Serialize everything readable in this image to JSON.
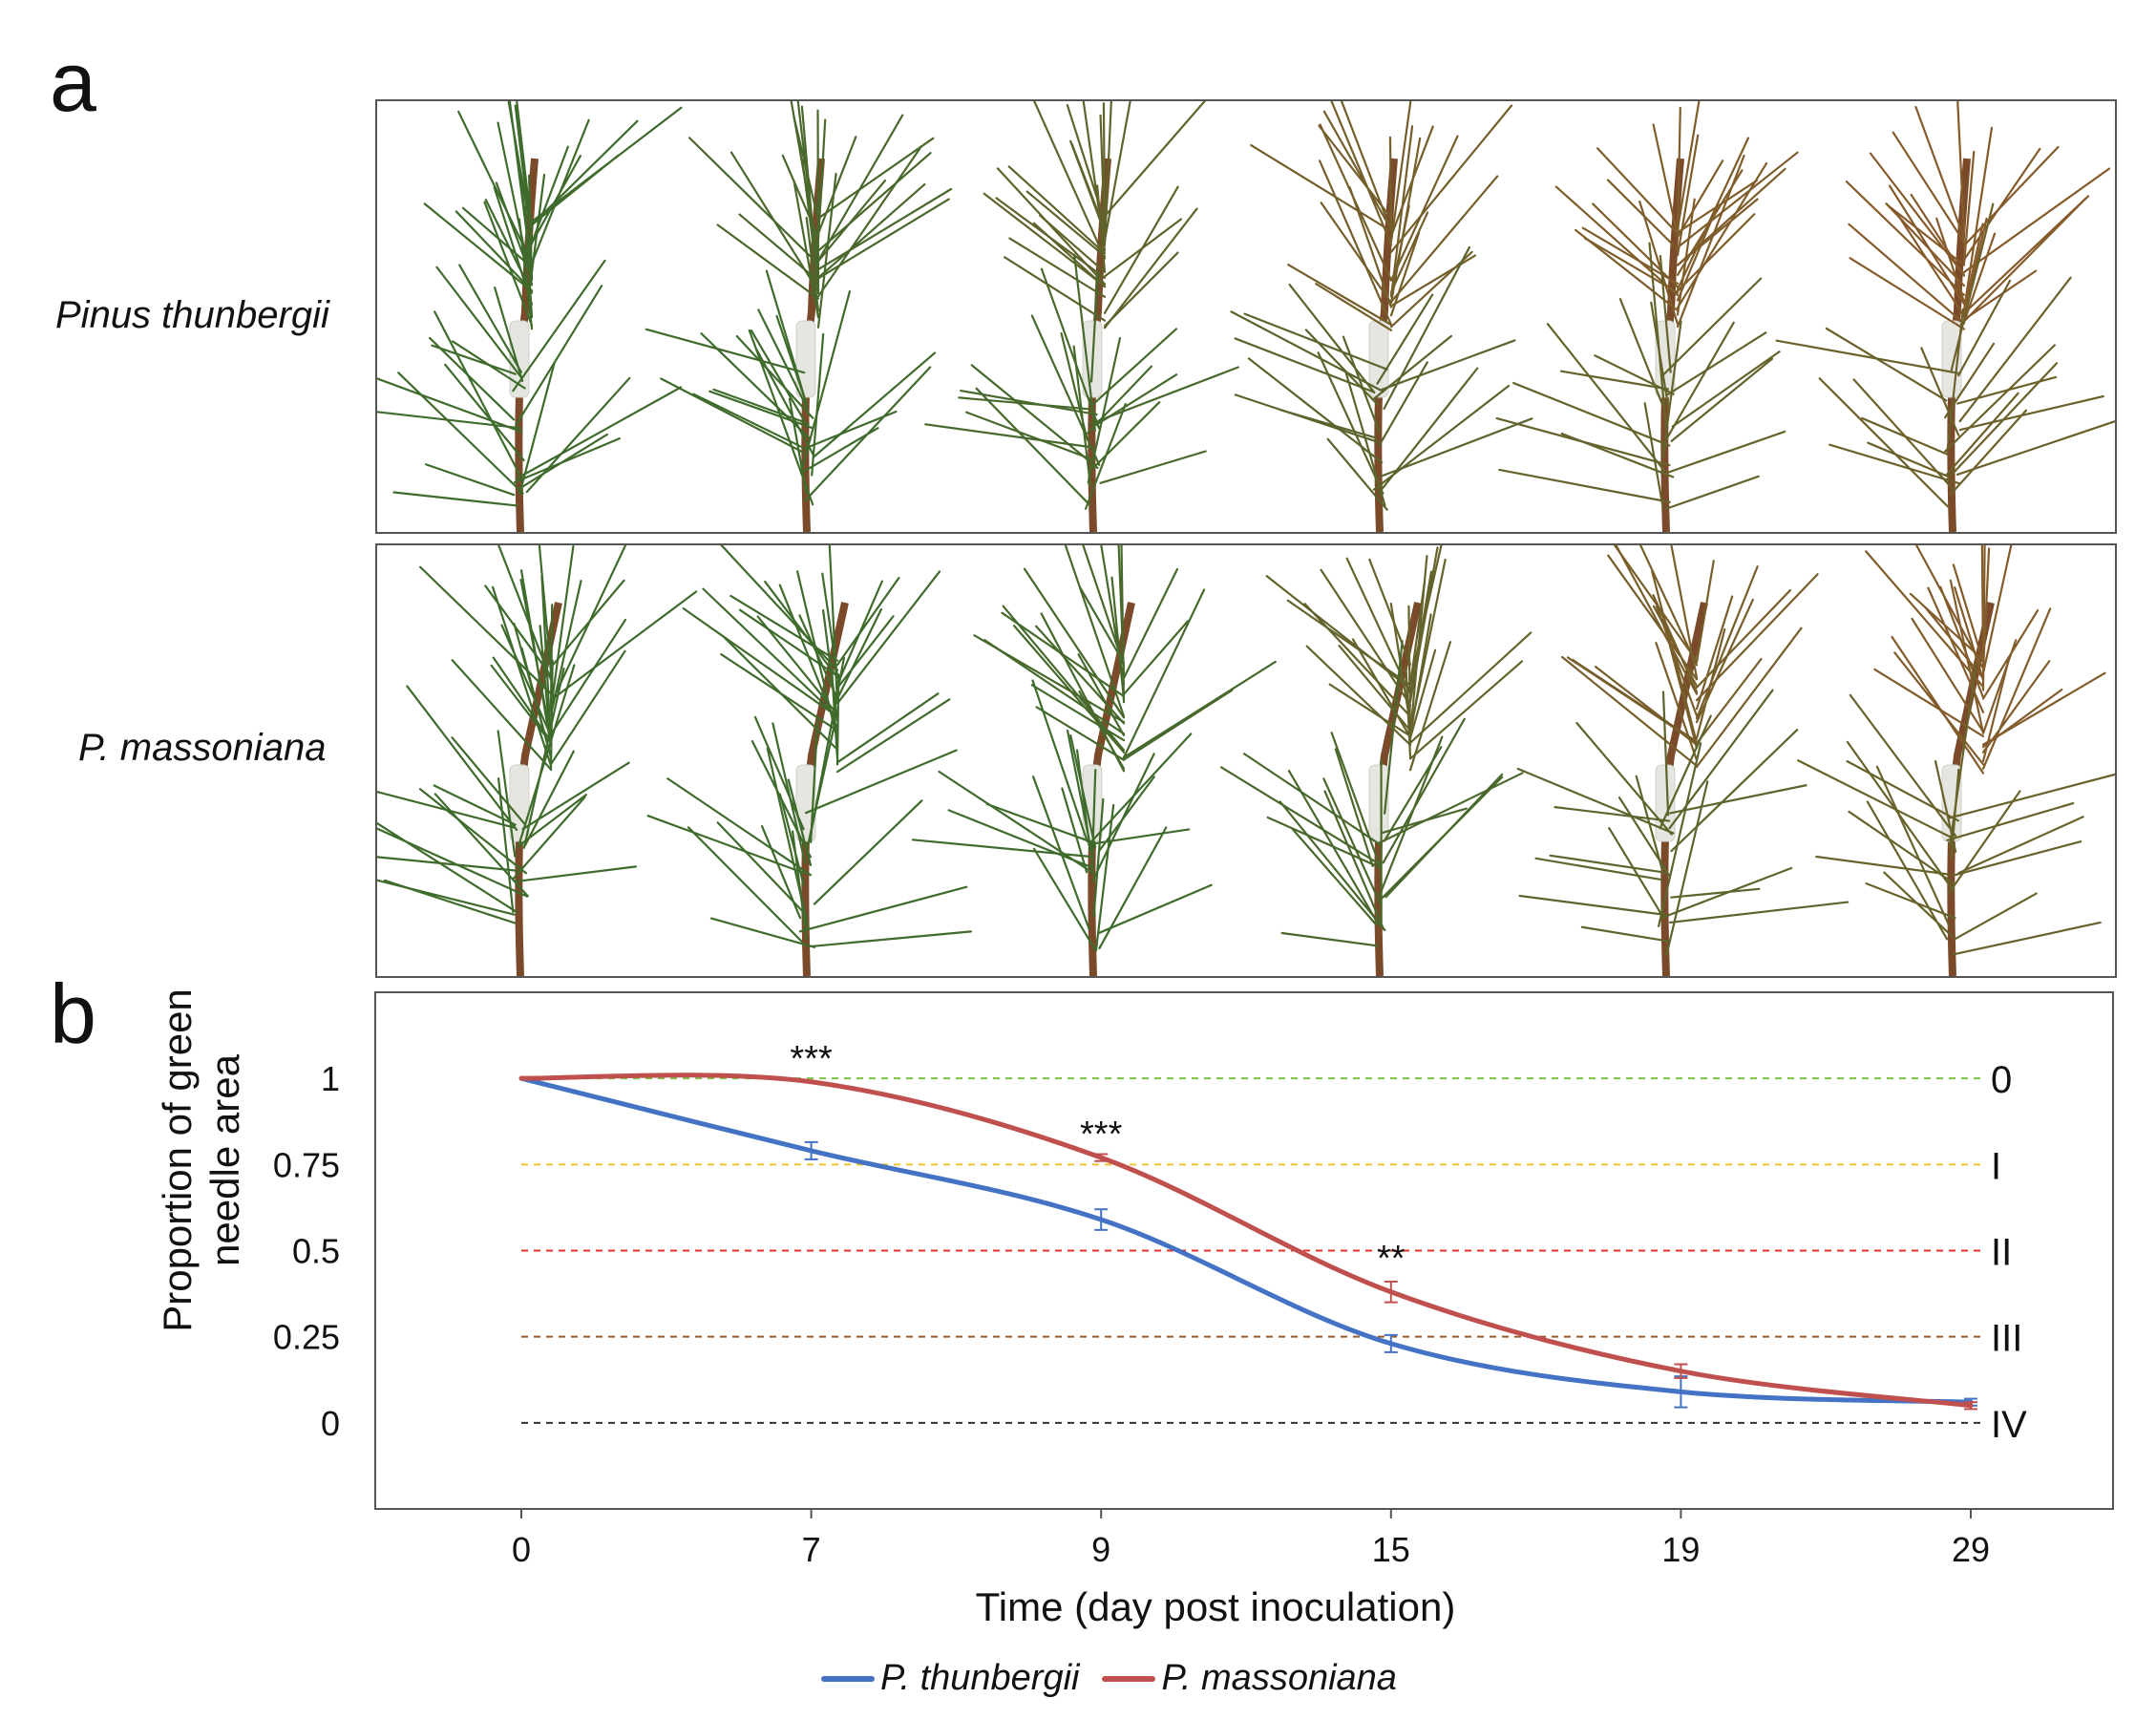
{
  "panel_a": {
    "letter": "a",
    "rows": [
      {
        "label": "Pinus thunbergii",
        "browning": [
          0.0,
          0.15,
          0.45,
          0.7,
          0.85,
          0.95
        ]
      },
      {
        "label": "P. massoniana",
        "browning": [
          0.0,
          0.0,
          0.1,
          0.5,
          0.75,
          0.9
        ]
      }
    ],
    "colors": {
      "green": "#3f6b2c",
      "brown": "#8a5a2b",
      "stem": "#7a4a2a",
      "tape": "#e6e6e0"
    }
  },
  "panel_b": {
    "letter": "b"
  },
  "chart_data": {
    "type": "line",
    "title": "",
    "xlabel": "Time (day post inoculation)",
    "ylabel_lines": [
      "Proportion of green",
      "needle area"
    ],
    "categories": [
      "0",
      "7",
      "9",
      "15",
      "19",
      "29"
    ],
    "ylim": [
      -0.25,
      1.25
    ],
    "yticks": [
      {
        "value": 1,
        "label": "1"
      },
      {
        "value": 0.75,
        "label": "0.75"
      },
      {
        "value": 0.5,
        "label": "0.5"
      },
      {
        "value": 0.25,
        "label": "0.25"
      },
      {
        "value": 0,
        "label": "0"
      }
    ],
    "series": [
      {
        "name": "P. thunbergii",
        "color": "#4472c4",
        "values": [
          1.0,
          0.79,
          0.59,
          0.23,
          0.09,
          0.06
        ],
        "errors": [
          0.0,
          0.025,
          0.03,
          0.025,
          0.045,
          0.01
        ]
      },
      {
        "name": "P. massoniana",
        "color": "#c0504d",
        "values": [
          1.0,
          0.99,
          0.77,
          0.38,
          0.15,
          0.05
        ],
        "errors": [
          0.0,
          0.0,
          0.01,
          0.03,
          0.02,
          0.01
        ]
      }
    ],
    "reference_lines": [
      {
        "value": 1,
        "label": "0",
        "color": "#7bc143"
      },
      {
        "value": 0.75,
        "label": "I",
        "color": "#f2c230"
      },
      {
        "value": 0.5,
        "label": "II",
        "color": "#e8302a"
      },
      {
        "value": 0.25,
        "label": "III",
        "color": "#9a5a2a"
      },
      {
        "value": 0,
        "label": "IV",
        "color": "#333333"
      }
    ],
    "annotations": [
      {
        "category_index": 1,
        "value": 0.99,
        "text": "***"
      },
      {
        "category_index": 2,
        "value": 0.77,
        "text": "***"
      },
      {
        "category_index": 3,
        "value": 0.41,
        "text": "**"
      }
    ],
    "legend_position": "bottom-center"
  }
}
